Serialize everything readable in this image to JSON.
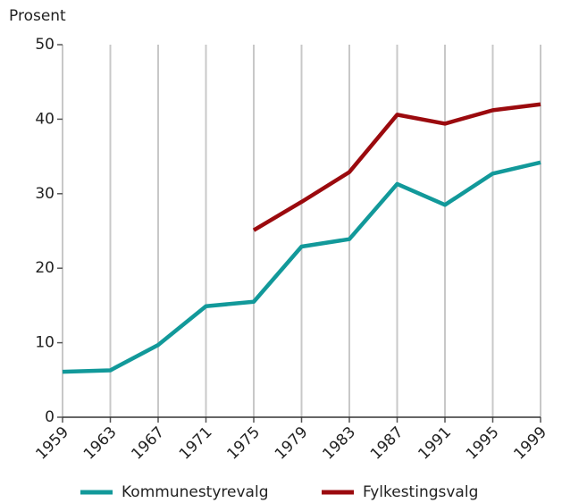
{
  "chart_data": {
    "type": "line",
    "ylabel": "Prosent",
    "x": [
      1959,
      1963,
      1967,
      1971,
      1975,
      1979,
      1983,
      1987,
      1991,
      1995,
      1999
    ],
    "xlim": [
      1959,
      1999
    ],
    "xticks": [
      1959,
      1963,
      1967,
      1971,
      1975,
      1979,
      1983,
      1987,
      1991,
      1995,
      1999
    ],
    "ylim": [
      0,
      50
    ],
    "yticks": [
      0,
      10,
      20,
      30,
      40,
      50
    ],
    "grid": "x",
    "legend": "bottom",
    "series": [
      {
        "name": "Kommunestyrevalg",
        "color": "#12999a",
        "values": [
          6.1,
          6.3,
          9.7,
          14.9,
          15.5,
          22.9,
          23.9,
          31.3,
          28.5,
          32.7,
          34.2
        ]
      },
      {
        "name": "Fylkestingsvalg",
        "color": "#9b0a0e",
        "values": [
          null,
          null,
          null,
          null,
          25.1,
          28.9,
          32.9,
          40.6,
          39.4,
          41.2,
          42.0
        ]
      }
    ]
  }
}
